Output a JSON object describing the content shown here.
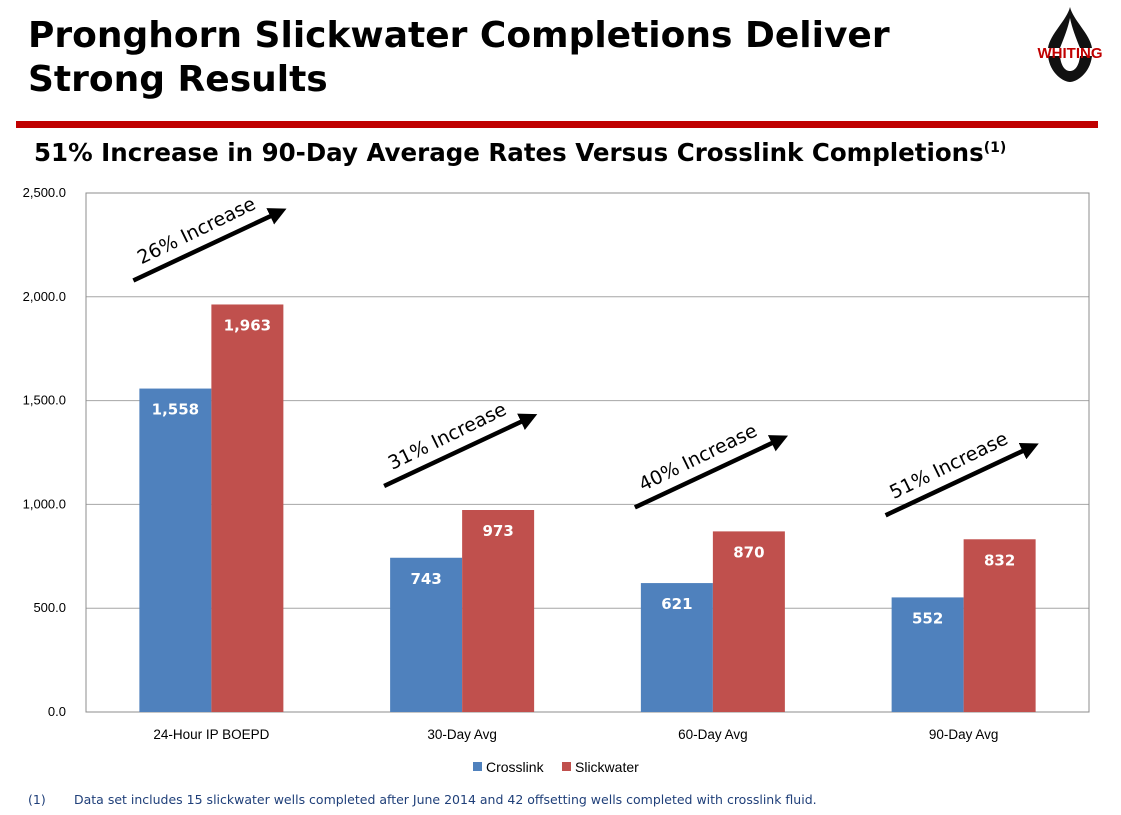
{
  "slide": {
    "title": "Pronghorn Slickwater Completions Deliver Strong Results",
    "subtitle": "51% Increase in 90-Day Average Rates Versus Crosslink Completions",
    "subtitle_sup": "(1)",
    "logo_text": "WHITING",
    "footnote_number": "(1)",
    "footnote_text": "Data set includes 15 slickwater wells completed after June 2014 and 42 offsetting wells completed with crosslink fluid."
  },
  "colors": {
    "crosslink": "#4f81bd",
    "slickwater": "#c0504d",
    "accent_red": "#c00000"
  },
  "chart_data": {
    "type": "bar",
    "title": "",
    "xlabel": "",
    "ylabel": "",
    "ylim": [
      0,
      2500
    ],
    "yticks": [
      0,
      500,
      1000,
      1500,
      2000,
      2500
    ],
    "ytick_labels": [
      "0.0",
      "500.0",
      "1,000.0",
      "1,500.0",
      "2,000.0",
      "2,500.0"
    ],
    "categories": [
      "24-Hour IP BOEPD",
      "30-Day Avg",
      "60-Day Avg",
      "90-Day Avg"
    ],
    "series": [
      {
        "name": "Crosslink",
        "values": [
          1558,
          743,
          621,
          552
        ],
        "labels": [
          "1,558",
          "743",
          "621",
          "552"
        ]
      },
      {
        "name": "Slickwater",
        "values": [
          1963,
          973,
          870,
          832
        ],
        "labels": [
          "1,963",
          "973",
          "870",
          "832"
        ]
      }
    ],
    "annotations": [
      "26% Increase",
      "31% Increase",
      "40% Increase",
      "51% Increase"
    ],
    "legend_position": "bottom",
    "grid": true
  }
}
